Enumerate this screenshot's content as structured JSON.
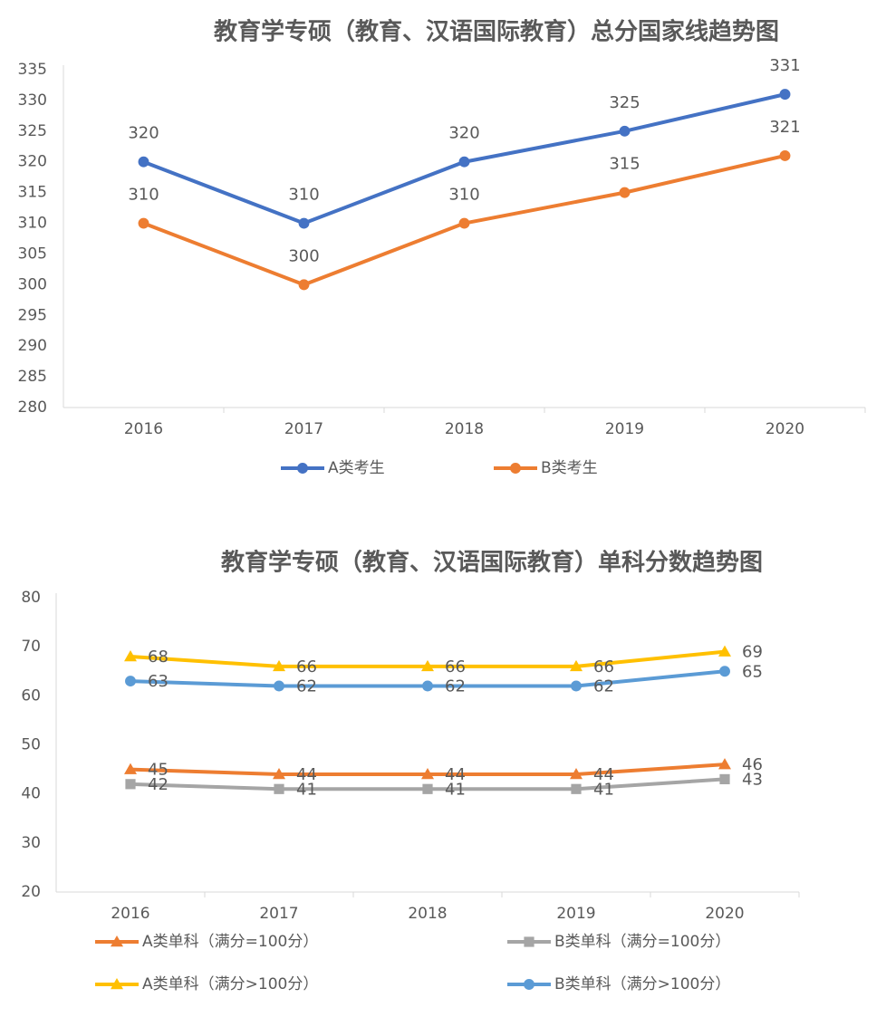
{
  "chart_data": [
    {
      "type": "line",
      "title": "教育学专硕（教育、汉语国际教育）总分国家线趋势图",
      "categories": [
        "2016",
        "2017",
        "2018",
        "2019",
        "2020"
      ],
      "series": [
        {
          "name": "A类考生",
          "color": "#4472c4",
          "marker": "circle",
          "values": [
            320,
            310,
            320,
            325,
            331
          ]
        },
        {
          "name": "B类考生",
          "color": "#ed7d31",
          "marker": "circle",
          "values": [
            310,
            300,
            310,
            315,
            321
          ]
        }
      ],
      "ylim": [
        280,
        335
      ],
      "yticks": [
        280,
        285,
        290,
        295,
        300,
        305,
        310,
        315,
        320,
        325,
        330,
        335
      ],
      "grid": false,
      "data_label_position": "above",
      "legend": "bottom"
    },
    {
      "type": "line",
      "title": "教育学专硕（教育、汉语国际教育）单科分数趋势图",
      "categories": [
        "2016",
        "2017",
        "2018",
        "2019",
        "2020"
      ],
      "series": [
        {
          "name": "A类单科（满分=100分）",
          "color": "#ed7d31",
          "marker": "triangle",
          "values": [
            45,
            44,
            44,
            44,
            46
          ]
        },
        {
          "name": "B类单科（满分=100分）",
          "color": "#a5a5a5",
          "marker": "square",
          "values": [
            42,
            41,
            41,
            41,
            43
          ]
        },
        {
          "name": "A类单科（满分>100分）",
          "color": "#ffc000",
          "marker": "triangle",
          "values": [
            68,
            66,
            66,
            66,
            69
          ]
        },
        {
          "name": "B类单科（满分>100分）",
          "color": "#5b9bd5",
          "marker": "circle",
          "values": [
            63,
            62,
            62,
            62,
            65
          ]
        }
      ],
      "ylim": [
        20,
        80
      ],
      "yticks": [
        20,
        30,
        40,
        50,
        60,
        70,
        80
      ],
      "grid": false,
      "data_label_position": "right",
      "legend": "bottom"
    }
  ]
}
